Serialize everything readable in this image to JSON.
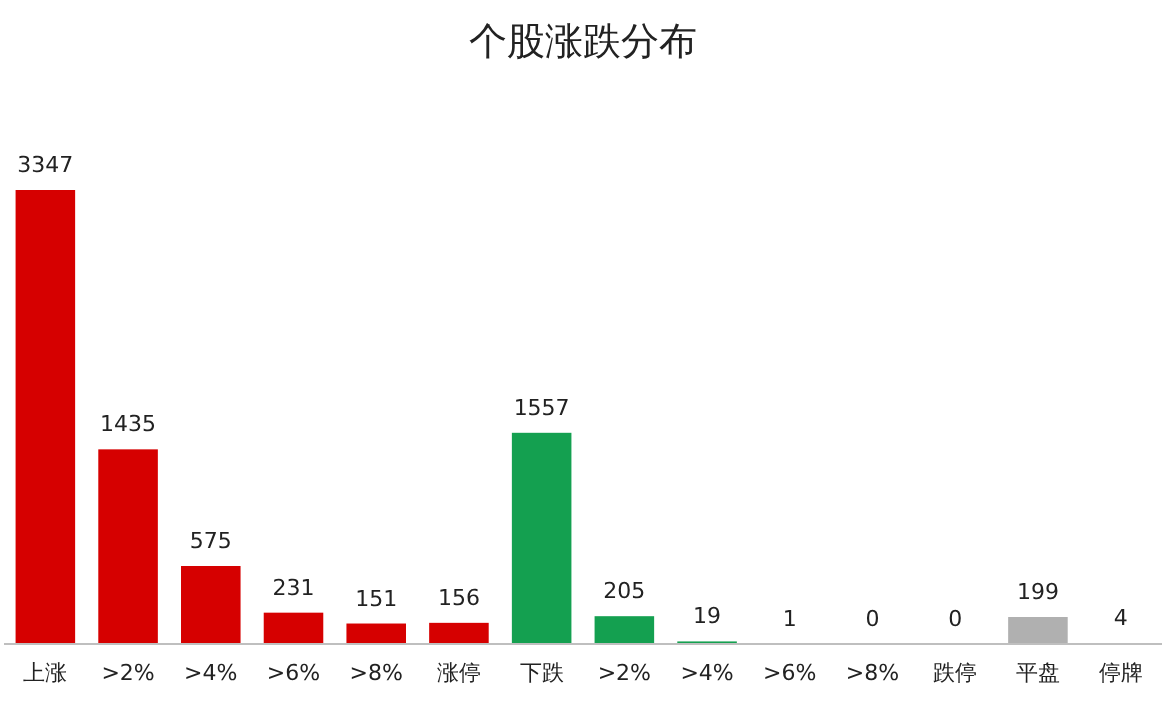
{
  "chart_data": {
    "type": "bar",
    "title": "个股涨跌分布",
    "categories": [
      "上涨",
      ">2%",
      ">4%",
      ">6%",
      ">8%",
      "涨停",
      "下跌",
      ">2%",
      ">4%",
      ">6%",
      ">8%",
      "跌停",
      "平盘",
      "停牌"
    ],
    "values": [
      3347,
      1435,
      575,
      231,
      151,
      156,
      1557,
      205,
      19,
      1,
      0,
      0,
      199,
      4
    ],
    "colors": [
      "#d60000",
      "#d60000",
      "#d60000",
      "#d60000",
      "#d60000",
      "#d60000",
      "#14a050",
      "#14a050",
      "#14a050",
      "#14a050",
      "#14a050",
      "#14a050",
      "#b0b0b0",
      "#b0b0b0"
    ],
    "data_labels": true
  }
}
